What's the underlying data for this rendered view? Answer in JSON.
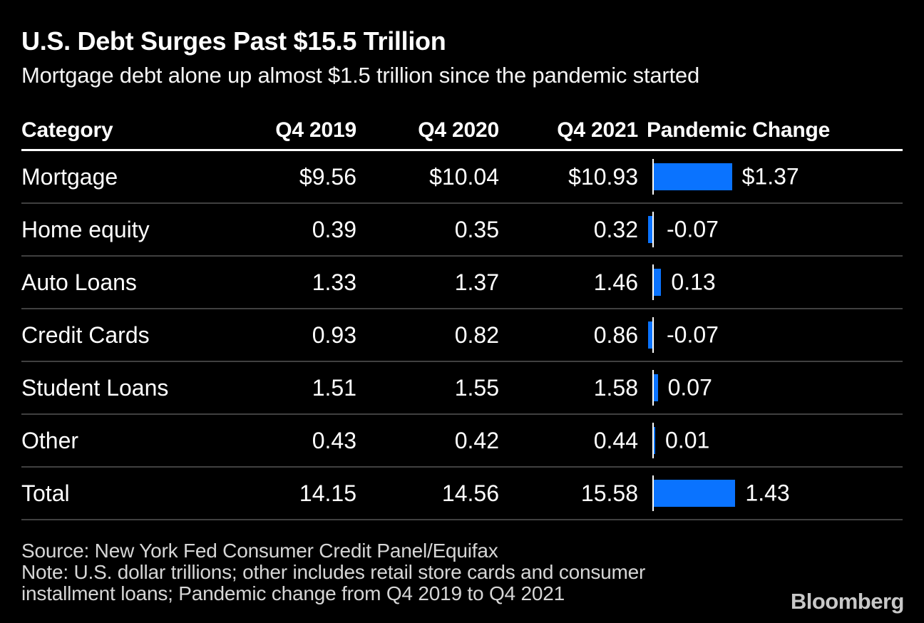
{
  "header": {
    "title": "U.S. Debt Surges Past $15.5 Trillion",
    "subtitle": "Mortgage debt alone up almost $1.5 trillion since the pandemic started"
  },
  "table": {
    "columns": [
      "Category",
      "Q4 2019",
      "Q4 2020",
      "Q4 2021",
      "Pandemic Change"
    ],
    "rows": [
      {
        "category": "Mortgage",
        "q4_2019": "$9.56",
        "q4_2020": "$10.04",
        "q4_2021": "$10.93",
        "change_label": "$1.37",
        "change_value": 1.37
      },
      {
        "category": "Home equity",
        "q4_2019": "0.39",
        "q4_2020": "0.35",
        "q4_2021": "0.32",
        "change_label": "-0.07",
        "change_value": -0.07
      },
      {
        "category": "Auto Loans",
        "q4_2019": "1.33",
        "q4_2020": "1.37",
        "q4_2021": "1.46",
        "change_label": "0.13",
        "change_value": 0.13
      },
      {
        "category": "Credit Cards",
        "q4_2019": "0.93",
        "q4_2020": "0.82",
        "q4_2021": "0.86",
        "change_label": "-0.07",
        "change_value": -0.07
      },
      {
        "category": "Student Loans",
        "q4_2019": "1.51",
        "q4_2020": "1.55",
        "q4_2021": "1.58",
        "change_label": "0.07",
        "change_value": 0.07
      },
      {
        "category": "Other",
        "q4_2019": "0.43",
        "q4_2020": "0.42",
        "q4_2021": "0.44",
        "change_label": "0.01",
        "change_value": 0.01
      },
      {
        "category": "Total",
        "q4_2019": "14.15",
        "q4_2020": "14.56",
        "q4_2021": "15.58",
        "change_label": "1.43",
        "change_value": 1.43
      }
    ]
  },
  "chart_data": {
    "type": "table",
    "title": "U.S. Debt Surges Past $15.5 Trillion",
    "subtitle": "Mortgage debt alone up almost $1.5 trillion since the pandemic started",
    "columns": [
      "Category",
      "Q4 2019",
      "Q4 2020",
      "Q4 2021",
      "Pandemic Change"
    ],
    "categories": [
      "Mortgage",
      "Home equity",
      "Auto Loans",
      "Credit Cards",
      "Student Loans",
      "Other",
      "Total"
    ],
    "series": [
      {
        "name": "Q4 2019",
        "values": [
          9.56,
          0.39,
          1.33,
          0.93,
          1.51,
          0.43,
          14.15
        ]
      },
      {
        "name": "Q4 2020",
        "values": [
          10.04,
          0.35,
          1.37,
          0.82,
          1.55,
          0.42,
          14.56
        ]
      },
      {
        "name": "Q4 2021",
        "values": [
          10.93,
          0.32,
          1.46,
          0.86,
          1.58,
          0.44,
          15.58
        ]
      },
      {
        "name": "Pandemic Change",
        "values": [
          1.37,
          -0.07,
          0.13,
          -0.07,
          0.07,
          0.01,
          1.43
        ]
      }
    ],
    "units": "U.S. dollar trillions",
    "bar_style": "horizontal bars anchored at zero axis, Pandemic Change column only",
    "legend_position": "none",
    "grid": "horizontal row dividers only"
  },
  "footer": {
    "source": "Source: New York Fed Consumer Credit Panel/Equifax",
    "note": "Note: U.S. dollar trillions; other includes retail store cards and consumer installment loans; Pandemic change from Q4 2019 to Q4 2021",
    "logo": "Bloomberg"
  },
  "colors": {
    "background": "#000000",
    "text": "#ffffff",
    "bar_blue": "#0a73ff",
    "divider": "#404040",
    "header_rule": "#ffffff",
    "footer_text": "#d6d6d6",
    "logo_gray": "#c8c8c8"
  }
}
